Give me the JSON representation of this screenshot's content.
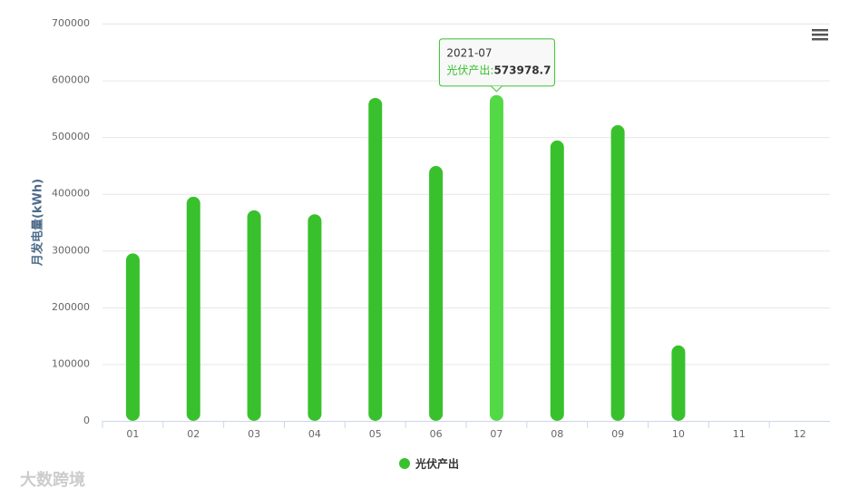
{
  "chart_data": {
    "type": "bar",
    "y_axis_title": "月发电量(kWh)",
    "categories": [
      "01",
      "02",
      "03",
      "04",
      "05",
      "06",
      "07",
      "08",
      "09",
      "10",
      "11",
      "12"
    ],
    "series": [
      {
        "name": "光伏产出",
        "color": "#38c12c",
        "values": [
          295000,
          395000,
          371000,
          364000,
          569000,
          449000,
          573978.7,
          494000,
          521000,
          133000,
          null,
          null
        ]
      }
    ],
    "ylim": [
      0,
      700000
    ],
    "yticks": [
      0,
      100000,
      200000,
      300000,
      400000,
      500000,
      600000,
      700000
    ],
    "grid": true,
    "legend": "bottom",
    "tooltip": {
      "title": "2021-07",
      "label": "光伏产出:",
      "highlight_color": "#52d945"
    },
    "watermark": "大数跨境"
  }
}
